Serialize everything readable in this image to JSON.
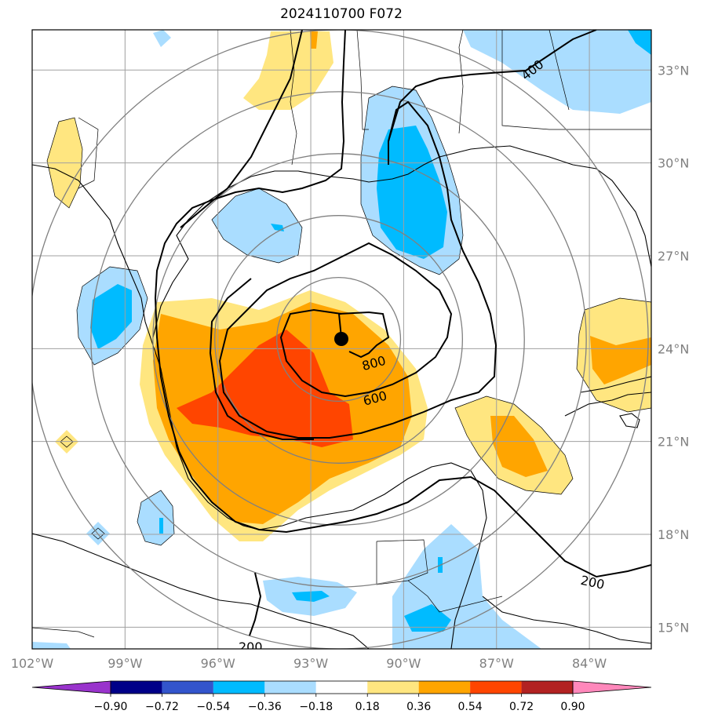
{
  "title": "2024110700 F072",
  "map": {
    "lon_range": [
      -102,
      -82
    ],
    "lat_range": [
      14.3,
      34.3
    ],
    "lon_ticks": [
      -102,
      -99,
      -96,
      -93,
      -90,
      -87,
      -84
    ],
    "lon_labels": [
      "102°W",
      "99°W",
      "96°W",
      "93°W",
      "90°W",
      "87°W",
      "84°W"
    ],
    "lat_ticks": [
      15,
      18,
      21,
      24,
      27,
      30,
      33
    ],
    "lat_labels": [
      "15°N",
      "18°N",
      "21°N",
      "24°N",
      "27°N",
      "30°N",
      "33°N"
    ],
    "storm_center": {
      "lon": -92.1,
      "lat": 24.3
    },
    "range_rings_deg": [
      2,
      4,
      6,
      8,
      10
    ]
  },
  "contours": {
    "line_color": "#000000",
    "labels": [
      "400",
      "800",
      "600",
      "200",
      "200"
    ]
  },
  "colorbar": {
    "levels": [
      "−0.90",
      "−0.72",
      "−0.54",
      "−0.36",
      "−0.18",
      "0.18",
      "0.36",
      "0.54",
      "0.72",
      "0.90"
    ],
    "colors": [
      "#9933cc",
      "#000088",
      "#3355cc",
      "#00bbff",
      "#aaddff",
      "#ffffff",
      "#ffe680",
      "#ffa500",
      "#ff4500",
      "#b22222",
      "#ff88bb"
    ],
    "extend": "both"
  }
}
